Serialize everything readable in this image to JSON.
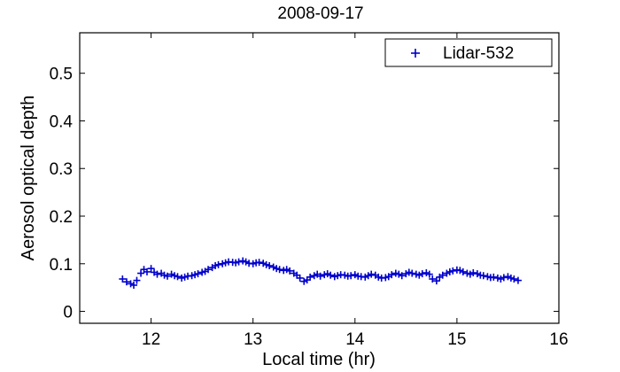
{
  "chart_data": {
    "type": "scatter",
    "title": "2008-09-17",
    "xlabel": "Local time (hr)",
    "ylabel": "Aerosol optical depth",
    "xlim": [
      11.3,
      16.0
    ],
    "ylim": [
      -0.025,
      0.585
    ],
    "xticks": [
      12,
      13,
      14,
      15,
      16
    ],
    "yticks": [
      0,
      0.1,
      0.2,
      0.3,
      0.4,
      0.5
    ],
    "xtick_labels": [
      "12",
      "13",
      "14",
      "15",
      "16"
    ],
    "ytick_labels": [
      "0",
      "0.1",
      "0.2",
      "0.3",
      "0.4",
      "0.5"
    ],
    "grid": false,
    "legend": {
      "position": "top-right",
      "entries": [
        "Lidar-532"
      ]
    },
    "colors": {
      "series": "#0000cc",
      "axes": "#000000",
      "background": "#ffffff"
    },
    "marker": "plus",
    "series": [
      {
        "name": "Lidar-532",
        "x": [
          11.72,
          11.76,
          11.8,
          11.83,
          11.86,
          11.9,
          11.93,
          11.96,
          12.0,
          12.03,
          12.06,
          12.1,
          12.13,
          12.16,
          12.2,
          12.23,
          12.26,
          12.3,
          12.33,
          12.36,
          12.4,
          12.43,
          12.46,
          12.5,
          12.53,
          12.56,
          12.6,
          12.63,
          12.66,
          12.7,
          12.73,
          12.76,
          12.8,
          12.83,
          12.86,
          12.9,
          12.93,
          12.96,
          13.0,
          13.03,
          13.06,
          13.1,
          13.13,
          13.16,
          13.2,
          13.23,
          13.26,
          13.3,
          13.33,
          13.36,
          13.4,
          13.43,
          13.46,
          13.5,
          13.53,
          13.56,
          13.6,
          13.63,
          13.66,
          13.7,
          13.73,
          13.76,
          13.8,
          13.83,
          13.86,
          13.9,
          13.93,
          13.96,
          14.0,
          14.03,
          14.06,
          14.1,
          14.13,
          14.16,
          14.2,
          14.23,
          14.26,
          14.3,
          14.33,
          14.36,
          14.4,
          14.43,
          14.46,
          14.5,
          14.53,
          14.56,
          14.6,
          14.63,
          14.66,
          14.7,
          14.73,
          14.76,
          14.8,
          14.83,
          14.86,
          14.9,
          14.93,
          14.96,
          15.0,
          15.03,
          15.06,
          15.1,
          15.13,
          15.16,
          15.2,
          15.23,
          15.26,
          15.3,
          15.33,
          15.36,
          15.4,
          15.43,
          15.46,
          15.5,
          15.53,
          15.56,
          15.6
        ],
        "y": [
          0.068,
          0.062,
          0.058,
          0.055,
          0.065,
          0.08,
          0.088,
          0.083,
          0.09,
          0.082,
          0.078,
          0.08,
          0.076,
          0.074,
          0.078,
          0.075,
          0.073,
          0.07,
          0.072,
          0.074,
          0.075,
          0.077,
          0.079,
          0.082,
          0.084,
          0.088,
          0.092,
          0.096,
          0.098,
          0.1,
          0.102,
          0.104,
          0.103,
          0.102,
          0.104,
          0.106,
          0.104,
          0.101,
          0.1,
          0.102,
          0.103,
          0.101,
          0.098,
          0.096,
          0.093,
          0.09,
          0.088,
          0.086,
          0.088,
          0.085,
          0.08,
          0.076,
          0.07,
          0.063,
          0.066,
          0.072,
          0.075,
          0.078,
          0.074,
          0.077,
          0.079,
          0.076,
          0.073,
          0.075,
          0.077,
          0.076,
          0.074,
          0.075,
          0.077,
          0.074,
          0.073,
          0.072,
          0.075,
          0.078,
          0.076,
          0.072,
          0.07,
          0.071,
          0.073,
          0.077,
          0.08,
          0.078,
          0.075,
          0.079,
          0.082,
          0.08,
          0.078,
          0.076,
          0.079,
          0.081,
          0.078,
          0.068,
          0.064,
          0.072,
          0.076,
          0.08,
          0.083,
          0.085,
          0.087,
          0.086,
          0.083,
          0.08,
          0.078,
          0.081,
          0.079,
          0.076,
          0.075,
          0.073,
          0.071,
          0.072,
          0.07,
          0.068,
          0.071,
          0.073,
          0.07,
          0.068,
          0.065
        ]
      }
    ]
  }
}
